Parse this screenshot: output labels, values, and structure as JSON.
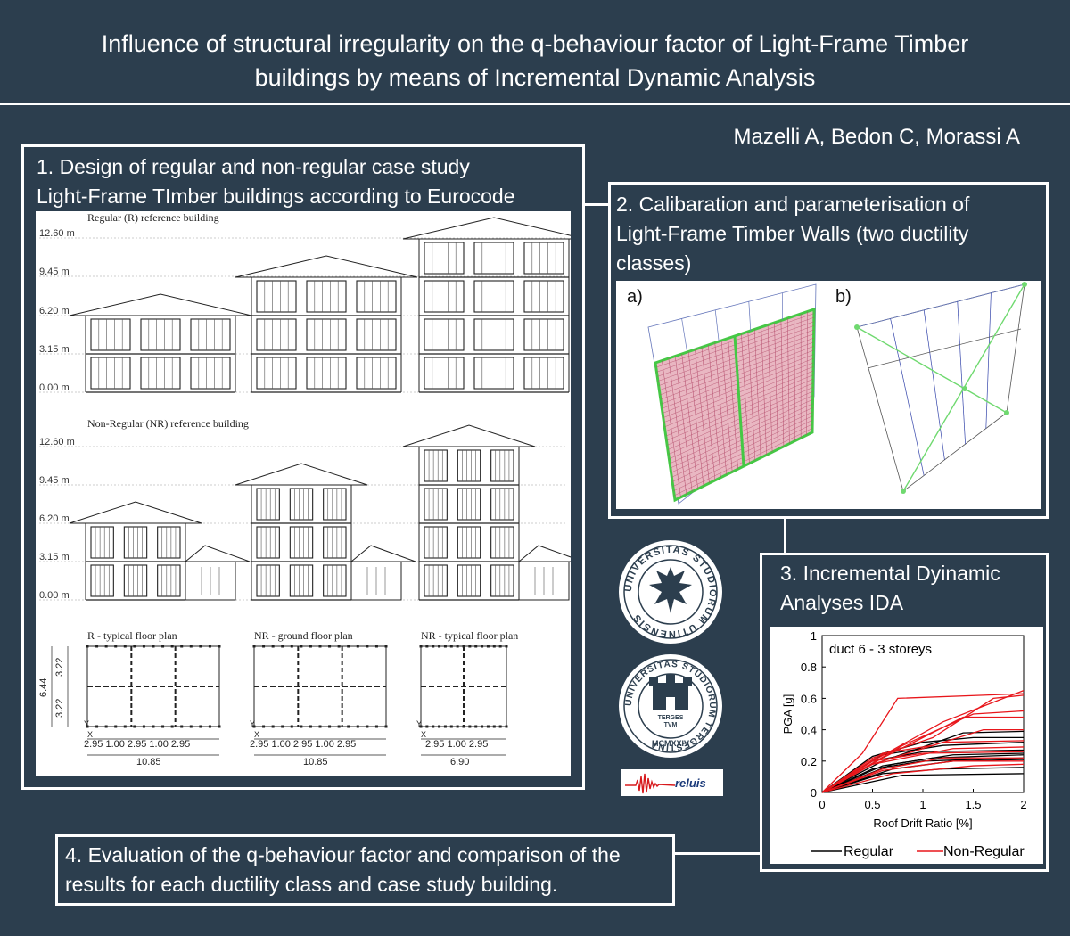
{
  "header": {
    "title_line1": "Influence of structural irregularity on the q-behaviour factor of Light-Frame Timber",
    "title_line2": "buildings by means of Incremental Dynamic Analysis",
    "authors": "Mazelli A, Bedon C, Morassi A"
  },
  "box1": {
    "title_line1": "1. Design of regular and non-regular case study",
    "title_line2": "Light-Frame TImber buildings according to Eurocode",
    "regular_label": "Regular (R) reference building",
    "nonregular_label": "Non-Regular (NR) reference building",
    "levels": [
      "12.60 m",
      "9.45 m",
      "6.20 m",
      "3.15 m",
      "0.00 m"
    ],
    "plan1_label": "R - typical floor plan",
    "plan2_label": "NR - ground floor plan",
    "plan3_label": "NR - typical floor plan",
    "plan1_dims": "2.95 1.00 2.95 1.00 2.95",
    "plan1_total": "10.85",
    "plan2_dims": "2.95 1.00 2.95 1.00 2.95",
    "plan2_total": "10.85",
    "plan3_dims": "2.95 1.00 2.95",
    "plan3_total": "6.90",
    "plan_vert_total": "6.44",
    "plan_vert_1": "3.22",
    "plan_vert_2": "3.22",
    "axis_x": "X",
    "axis_y": "Y"
  },
  "box2": {
    "title_line1": "2. Calibaration and parameterisation of",
    "title_line2": "Light-Frame Timber Walls (two ductility",
    "title_line3": "classes)",
    "label_a": "a)",
    "label_b": "b)"
  },
  "box3": {
    "title_line1": "3. Incremental Dyinamic",
    "title_line2": "Analyses IDA"
  },
  "box4": {
    "title_line1": "4. Evaluation of the q-behaviour factor and comparison of the",
    "title_line2": "results for each ductility class and case study building."
  },
  "logos": {
    "udine_text": "UNIVERSITAS STUDIORUM UTINENSIS",
    "trieste_text": "UNIVERSITAS STUDIORUM TERGESTINA",
    "trieste_motto1": "TERGES",
    "trieste_motto2": "TVM",
    "trieste_year": "MCMXXIV",
    "reluis": "reluis"
  },
  "chart_data": {
    "type": "line",
    "title": "duct 6 - 3 storeys",
    "xlabel": "Roof Drift Ratio [%]",
    "ylabel": "PGA [g]",
    "xlim": [
      0,
      2
    ],
    "ylim": [
      0,
      1
    ],
    "xticks": [
      "0",
      "0.5",
      "1",
      "1.5",
      "2"
    ],
    "yticks": [
      "0",
      "0.2",
      "0.4",
      "0.6",
      "0.8",
      "1"
    ],
    "legend_position": "bottom",
    "colors": {
      "Regular": "#000000",
      "Non-Regular": "#e8161b"
    },
    "series": [
      {
        "name": "Regular",
        "curves": [
          [
            [
              0,
              0
            ],
            [
              0.5,
              0.23
            ],
            [
              1,
              0.32
            ],
            [
              1.5,
              0.35
            ],
            [
              2,
              0.35
            ]
          ],
          [
            [
              0,
              0
            ],
            [
              0.6,
              0.24
            ],
            [
              1.2,
              0.3
            ],
            [
              2,
              0.32
            ]
          ],
          [
            [
              0,
              0
            ],
            [
              0.5,
              0.2
            ],
            [
              1,
              0.26
            ],
            [
              2,
              0.27
            ]
          ],
          [
            [
              0,
              0
            ],
            [
              0.6,
              0.17
            ],
            [
              1.1,
              0.22
            ],
            [
              2,
              0.24
            ]
          ],
          [
            [
              0,
              0
            ],
            [
              0.5,
              0.15
            ],
            [
              1,
              0.2
            ],
            [
              2,
              0.22
            ]
          ],
          [
            [
              0,
              0
            ],
            [
              0.7,
              0.15
            ],
            [
              1.3,
              0.2
            ],
            [
              2,
              0.21
            ]
          ],
          [
            [
              0,
              0
            ],
            [
              0.6,
              0.12
            ],
            [
              1.2,
              0.15
            ],
            [
              2,
              0.16
            ]
          ],
          [
            [
              0,
              0
            ],
            [
              0.8,
              0.11
            ],
            [
              2,
              0.12
            ]
          ],
          [
            [
              0,
              0
            ],
            [
              0.6,
              0.2
            ],
            [
              1.4,
              0.38
            ],
            [
              2,
              0.39
            ]
          ],
          [
            [
              0,
              0
            ],
            [
              0.7,
              0.18
            ],
            [
              1.3,
              0.24
            ],
            [
              2,
              0.25
            ]
          ]
        ]
      },
      {
        "name": "Non-Regular",
        "curves": [
          [
            [
              0,
              0
            ],
            [
              0.4,
              0.25
            ],
            [
              0.75,
              0.6
            ],
            [
              1.6,
              0.62
            ],
            [
              2,
              0.63
            ]
          ],
          [
            [
              0,
              0
            ],
            [
              0.5,
              0.2
            ],
            [
              1.2,
              0.45
            ],
            [
              1.8,
              0.6
            ],
            [
              2,
              0.65
            ]
          ],
          [
            [
              0,
              0
            ],
            [
              0.6,
              0.22
            ],
            [
              1.4,
              0.48
            ],
            [
              2,
              0.48
            ]
          ],
          [
            [
              0,
              0
            ],
            [
              0.6,
              0.25
            ],
            [
              1.1,
              0.3
            ],
            [
              1.6,
              0.4
            ],
            [
              2,
              0.4
            ]
          ],
          [
            [
              0,
              0
            ],
            [
              0.5,
              0.18
            ],
            [
              1.2,
              0.32
            ],
            [
              2,
              0.33
            ]
          ],
          [
            [
              0,
              0
            ],
            [
              0.5,
              0.2
            ],
            [
              1,
              0.25
            ],
            [
              2,
              0.26
            ]
          ],
          [
            [
              0,
              0
            ],
            [
              0.6,
              0.15
            ],
            [
              1.2,
              0.22
            ],
            [
              2,
              0.22
            ]
          ],
          [
            [
              0,
              0
            ],
            [
              0.6,
              0.14
            ],
            [
              1.3,
              0.2
            ],
            [
              2,
              0.2
            ]
          ],
          [
            [
              0,
              0
            ],
            [
              0.7,
              0.12
            ],
            [
              1.5,
              0.17
            ],
            [
              2,
              0.18
            ]
          ],
          [
            [
              0,
              0
            ],
            [
              0.5,
              0.18
            ],
            [
              1.3,
              0.28
            ],
            [
              2,
              0.29
            ]
          ],
          [
            [
              0,
              0
            ],
            [
              0.8,
              0.3
            ],
            [
              1.5,
              0.5
            ],
            [
              2,
              0.52
            ]
          ],
          [
            [
              0,
              0
            ],
            [
              0.5,
              0.22
            ],
            [
              1.1,
              0.35
            ],
            [
              1.7,
              0.6
            ],
            [
              2,
              0.62
            ]
          ]
        ]
      }
    ]
  }
}
